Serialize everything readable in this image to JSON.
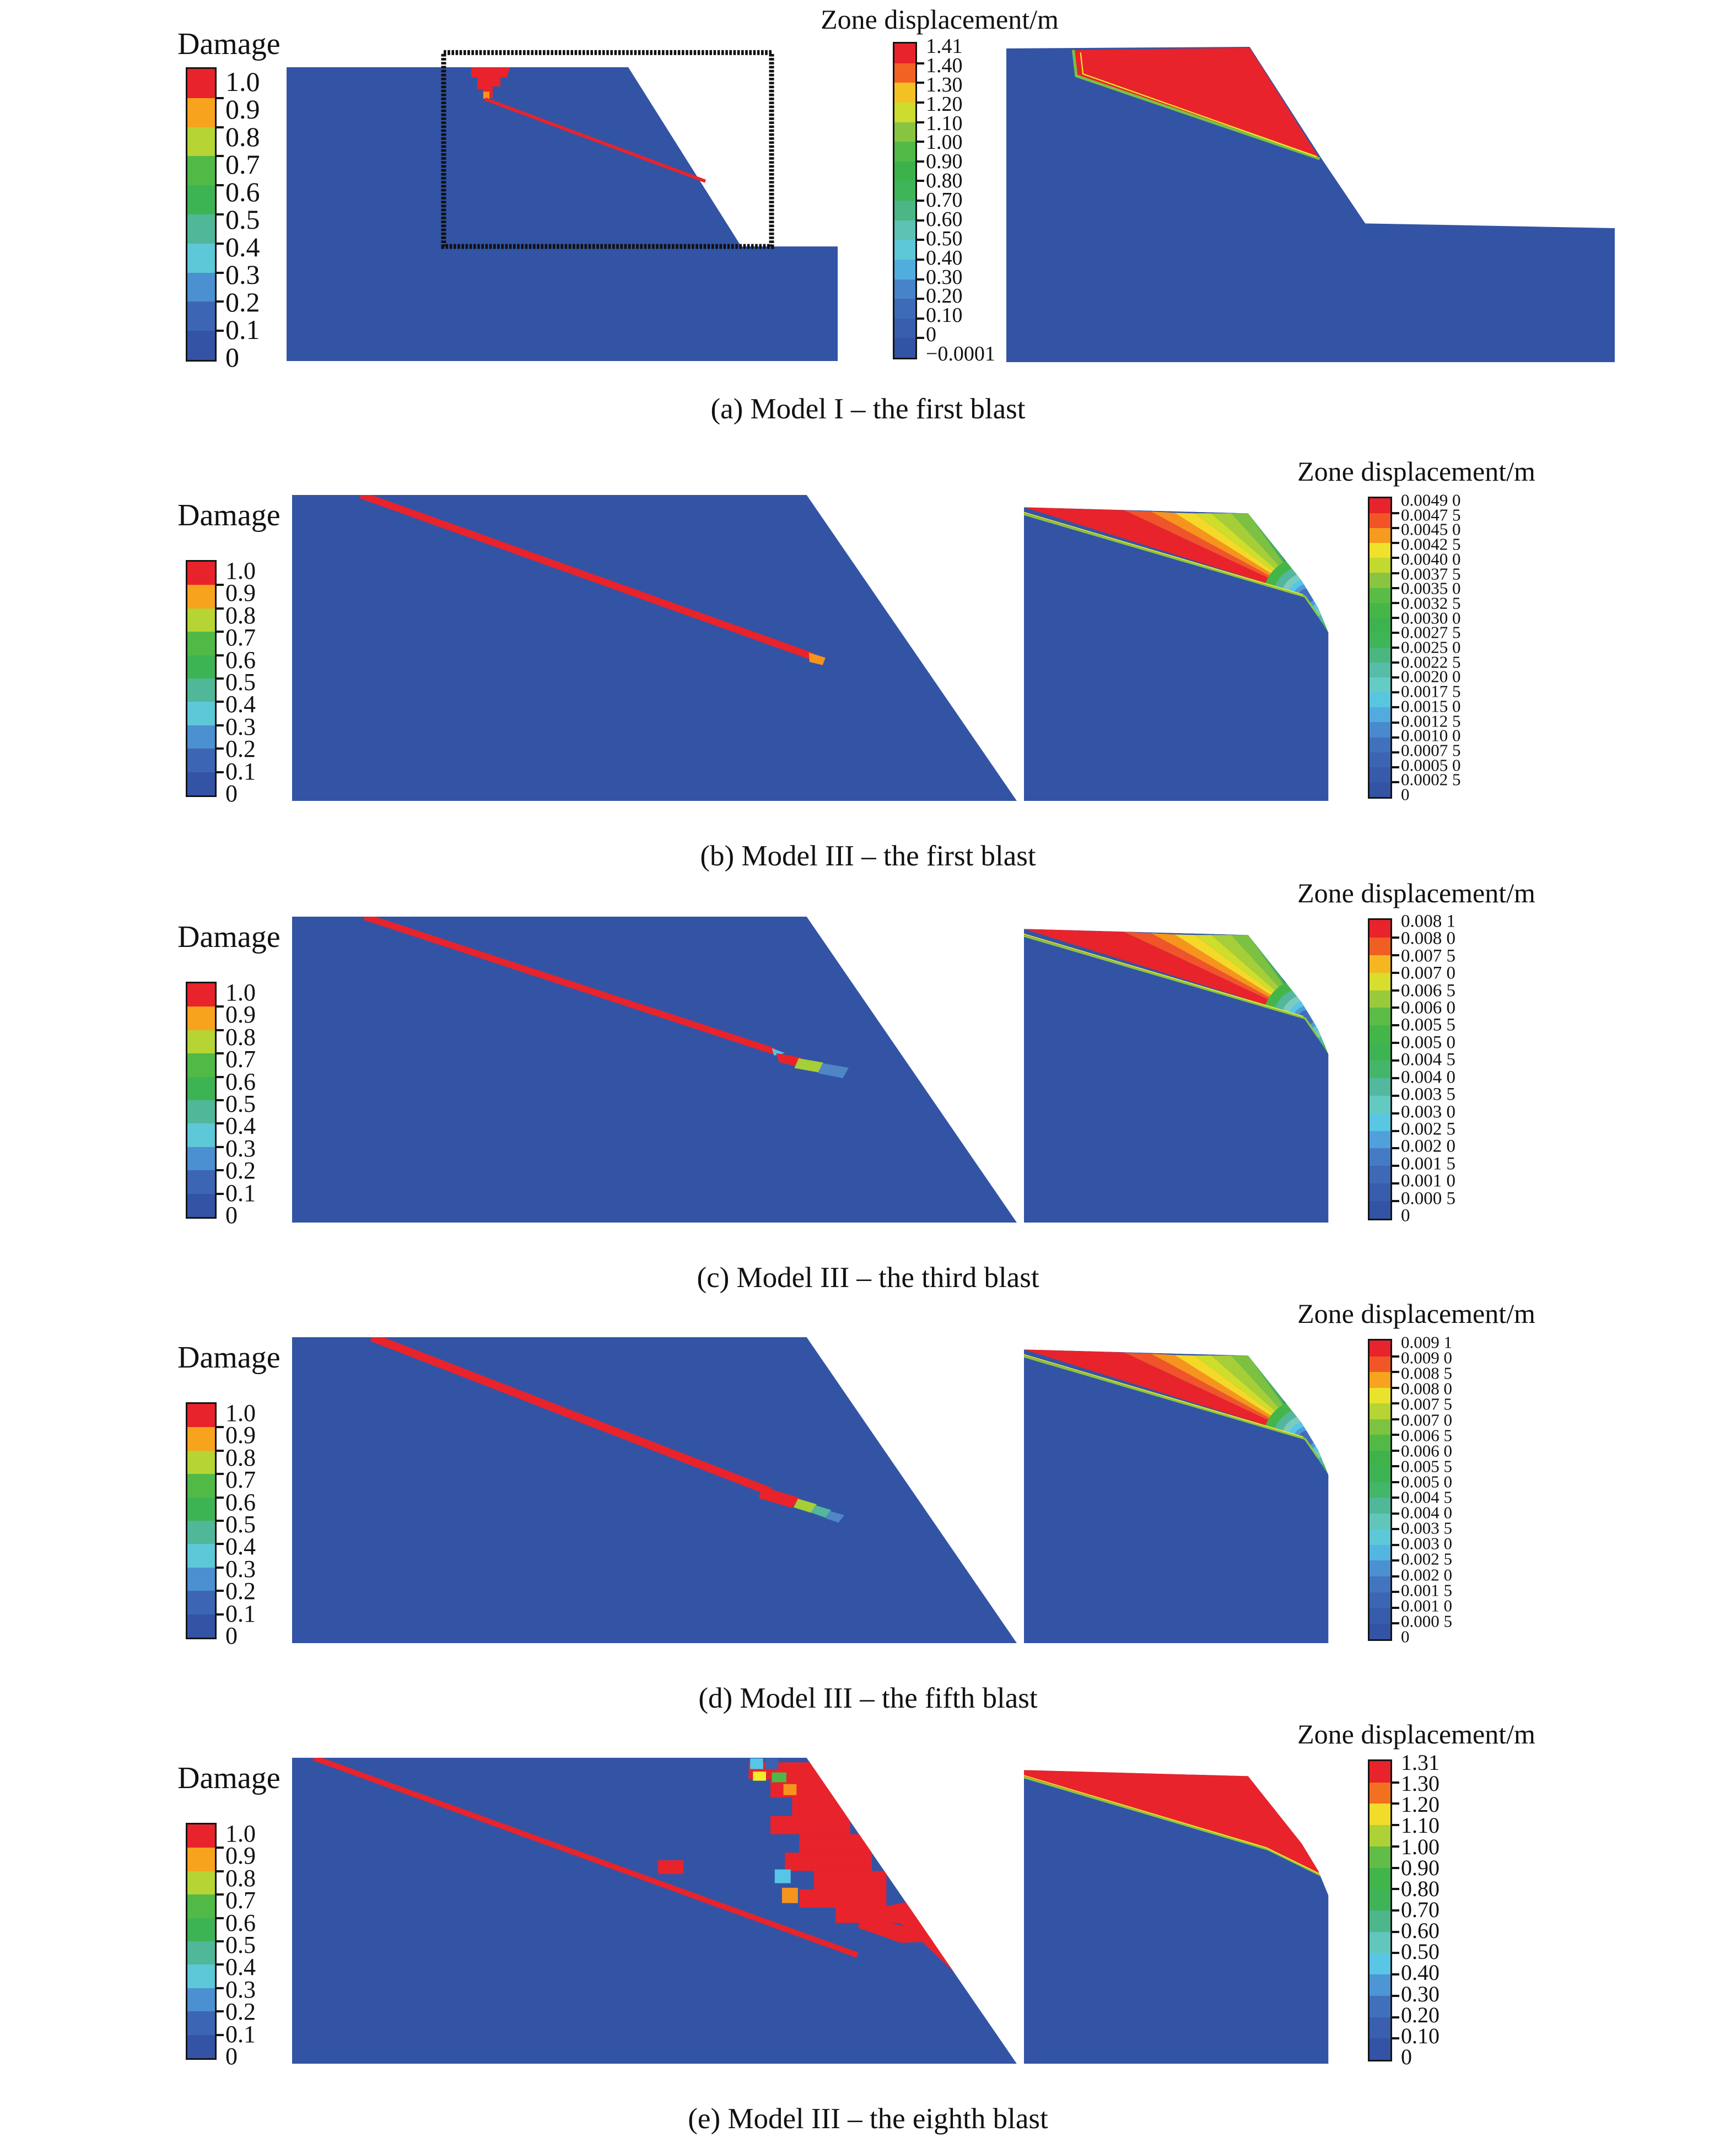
{
  "figure": {
    "damage_title": "Damage",
    "zone_displacement_title": "Zone displacement/m",
    "damage_labels": [
      "1.0",
      "0.9",
      "0.8",
      "0.7",
      "0.6",
      "0.5",
      "0.4",
      "0.3",
      "0.2",
      "0.1",
      "0"
    ],
    "rows": [
      {
        "key": "a",
        "caption": "(a) Model I – the first blast",
        "displacement_labels": [
          "1.41",
          "1.40",
          "1.30",
          "1.20",
          "1.10",
          "1.00",
          "0.90",
          "0.80",
          "0.70",
          "0.60",
          "0.50",
          "0.40",
          "0.30",
          "0.20",
          "0.10",
          "0",
          "−0.0001"
        ]
      },
      {
        "key": "b",
        "caption": "(b) Model III – the first blast",
        "displacement_labels": [
          "0.0049 0",
          "0.0047 5",
          "0.0045 0",
          "0.0042 5",
          "0.0040 0",
          "0.0037 5",
          "0.0035 0",
          "0.0032 5",
          "0.0030 0",
          "0.0027 5",
          "0.0025 0",
          "0.0022 5",
          "0.0020 0",
          "0.0017 5",
          "0.0015 0",
          "0.0012 5",
          "0.0010 0",
          "0.0007 5",
          "0.0005 0",
          "0.0002 5",
          "0"
        ]
      },
      {
        "key": "c",
        "caption": "(c) Model III – the third blast",
        "displacement_labels": [
          "0.008 1",
          "0.008 0",
          "0.007 5",
          "0.007 0",
          "0.006 5",
          "0.006 0",
          "0.005 5",
          "0.005 0",
          "0.004 5",
          "0.004 0",
          "0.003 5",
          "0.003 0",
          "0.002 5",
          "0.002 0",
          "0.001 5",
          "0.001 0",
          "0.000 5",
          "0"
        ]
      },
      {
        "key": "d",
        "caption": "(d) Model III – the fifth blast",
        "displacement_labels": [
          "0.009 1",
          "0.009 0",
          "0.008 5",
          "0.008 0",
          "0.007 5",
          "0.007 0",
          "0.006 5",
          "0.006 0",
          "0.005 5",
          "0.005 0",
          "0.004 5",
          "0.004 0",
          "0.003 5",
          "0.003 0",
          "0.002 5",
          "0.002 0",
          "0.001 5",
          "0.001 0",
          "0.000 5",
          "0"
        ]
      },
      {
        "key": "e",
        "caption": "(e) Model III – the eighth blast",
        "displacement_labels": [
          "1.31",
          "1.30",
          "1.20",
          "1.10",
          "1.00",
          "0.90",
          "0.80",
          "0.70",
          "0.60",
          "0.50",
          "0.40",
          "0.30",
          "0.20",
          "0.10",
          "0"
        ]
      }
    ],
    "colors": {
      "body_blue": "#3354a5",
      "damage_red": "#e8232b",
      "slip_line_green": "#8dc63f",
      "slip_line_yellow": "#f2e72c",
      "ramp": [
        [
          0.0,
          "#3353a4"
        ],
        [
          0.1,
          "#3b63b1"
        ],
        [
          0.18,
          "#4377c2"
        ],
        [
          0.24,
          "#4f9ad8"
        ],
        [
          0.3,
          "#56c5e8"
        ],
        [
          0.37,
          "#65cbc4"
        ],
        [
          0.44,
          "#52b79d"
        ],
        [
          0.52,
          "#3eb559"
        ],
        [
          0.6,
          "#3cb24b"
        ],
        [
          0.68,
          "#55bb46"
        ],
        [
          0.74,
          "#8dc63f"
        ],
        [
          0.79,
          "#c3d92f"
        ],
        [
          0.84,
          "#f0e42c"
        ],
        [
          0.89,
          "#f7a21d"
        ],
        [
          0.93,
          "#f26522"
        ],
        [
          0.97,
          "#ef3f2c"
        ],
        [
          1.0,
          "#e8232b"
        ]
      ]
    }
  }
}
